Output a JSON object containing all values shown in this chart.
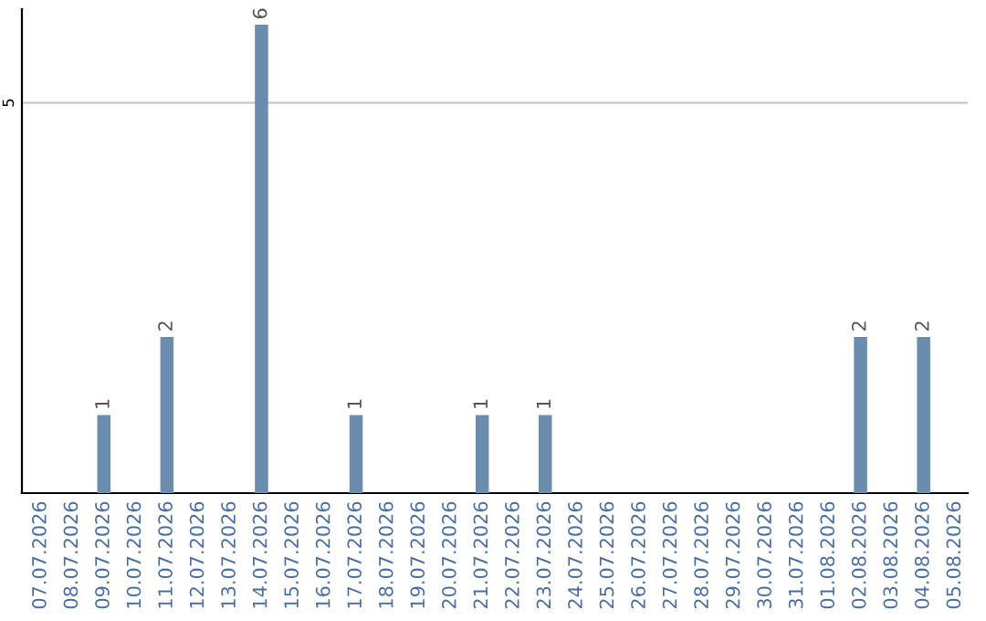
{
  "chart_data": {
    "type": "bar",
    "categories": [
      "07.07.2026",
      "08.07.2026",
      "09.07.2026",
      "10.07.2026",
      "11.07.2026",
      "12.07.2026",
      "13.07.2026",
      "14.07.2026",
      "15.07.2026",
      "16.07.2026",
      "17.07.2026",
      "18.07.2026",
      "19.07.2026",
      "20.07.2026",
      "21.07.2026",
      "22.07.2026",
      "23.07.2026",
      "24.07.2026",
      "25.07.2026",
      "26.07.2026",
      "27.07.2026",
      "28.07.2026",
      "29.07.2026",
      "30.07.2026",
      "31.07.2026",
      "01.08.2026",
      "02.08.2026",
      "03.08.2026",
      "04.08.2026",
      "05.08.2026"
    ],
    "values": [
      0,
      0,
      1,
      0,
      2,
      0,
      0,
      6,
      0,
      0,
      1,
      0,
      0,
      0,
      1,
      0,
      1,
      0,
      0,
      0,
      0,
      0,
      0,
      0,
      0,
      0,
      2,
      0,
      2,
      0
    ],
    "value_labels": [
      null,
      null,
      "1",
      null,
      "2",
      null,
      null,
      "6",
      null,
      null,
      "1",
      null,
      null,
      null,
      "1",
      null,
      "1",
      null,
      null,
      null,
      null,
      null,
      null,
      null,
      null,
      null,
      "2",
      null,
      "2",
      null
    ],
    "color": "#6a8caf",
    "ylim": [
      0,
      6.2
    ],
    "yticks": [
      5
    ],
    "grid": "y"
  }
}
